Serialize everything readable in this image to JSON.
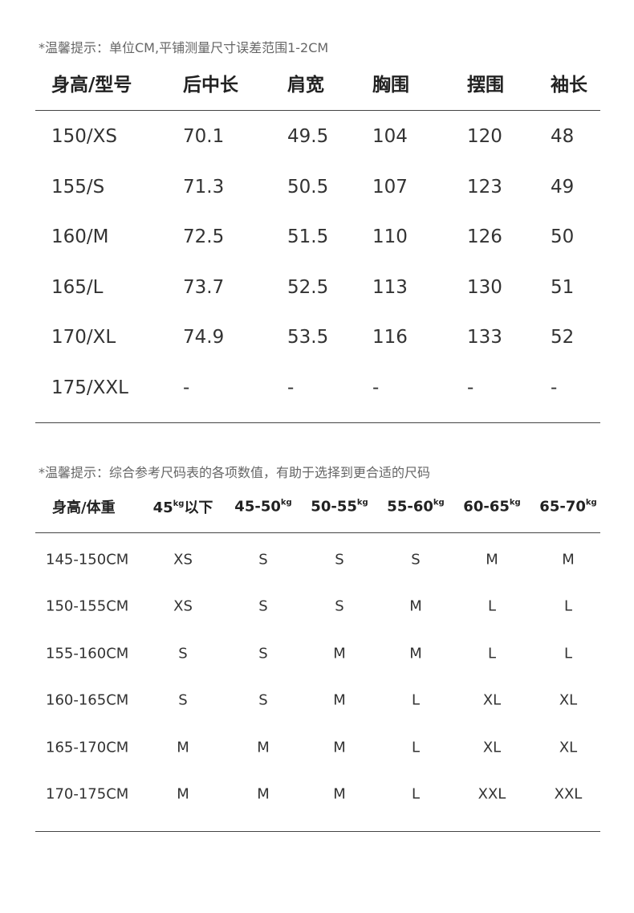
{
  "table1": {
    "note": "*温馨提示：单位CM,平铺测量尺寸误差范围1-2CM",
    "headers": [
      "身高/型号",
      "后中长",
      "肩宽",
      "胸围",
      "摆围",
      "袖长"
    ],
    "rows": [
      [
        "150/XS",
        "70.1",
        "49.5",
        "104",
        "120",
        "48"
      ],
      [
        "155/S",
        "71.3",
        "50.5",
        "107",
        "123",
        "49"
      ],
      [
        "160/M",
        "72.5",
        "51.5",
        "110",
        "126",
        "50"
      ],
      [
        "165/L",
        "73.7",
        "52.5",
        "113",
        "130",
        "51"
      ],
      [
        "170/XL",
        "74.9",
        "53.5",
        "116",
        "133",
        "52"
      ],
      [
        "175/XXL",
        "-",
        "-",
        "-",
        "-",
        "-"
      ]
    ]
  },
  "table2": {
    "note": "*温馨提示：综合参考尺码表的各项数值，有助于选择到更合适的尺码",
    "headers": [
      {
        "main": "身高/体重",
        "sup": "",
        "suffix": ""
      },
      {
        "main": "45",
        "sup": "kg",
        "suffix": "以下"
      },
      {
        "main": "45-50",
        "sup": "kg",
        "suffix": ""
      },
      {
        "main": "50-55",
        "sup": "kg",
        "suffix": ""
      },
      {
        "main": "55-60",
        "sup": "kg",
        "suffix": ""
      },
      {
        "main": "60-65",
        "sup": "kg",
        "suffix": ""
      },
      {
        "main": "65-70",
        "sup": "kg",
        "suffix": ""
      }
    ],
    "rows": [
      [
        "145-150CM",
        "XS",
        "S",
        "S",
        "S",
        "M",
        "M"
      ],
      [
        "150-155CM",
        "XS",
        "S",
        "S",
        "M",
        "L",
        "L"
      ],
      [
        "155-160CM",
        "S",
        "S",
        "M",
        "M",
        "L",
        "L"
      ],
      [
        "160-165CM",
        "S",
        "S",
        "M",
        "L",
        "XL",
        "XL"
      ],
      [
        "165-170CM",
        "M",
        "M",
        "M",
        "L",
        "XL",
        "XL"
      ],
      [
        "170-175CM",
        "M",
        "M",
        "M",
        "L",
        "XXL",
        "XXL"
      ]
    ]
  }
}
